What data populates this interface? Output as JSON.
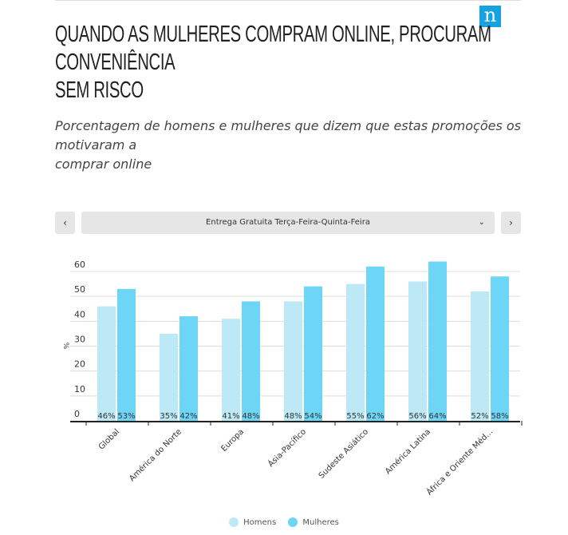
{
  "header": {
    "logo_letter": "n",
    "title_lines": [
      "QUANDO AS MULHERES COMPRAM ONLINE, PROCURAM",
      "CONVENIÊNCIA",
      "SEM RISCO"
    ],
    "subtitle_lines": [
      "Porcentagem de homens e mulheres que dizem que estas promoções os",
      "motivaram a",
      "comprar online"
    ]
  },
  "controls": {
    "prev_label": "‹",
    "next_label": "›",
    "selected_option": "Entrega Gratuita Terça-Feira-Quinta-Feira",
    "chevron": "⌄"
  },
  "colors": {
    "homens": "#bde9f7",
    "mulheres": "#6dd5f6",
    "axis": "#222222",
    "grid": "#dddddd"
  },
  "chart_data": {
    "type": "bar",
    "title": "Entrega Gratuita Terça-Feira-Quinta-Feira",
    "ylabel": "%",
    "xlabel": "",
    "ylim": [
      0,
      60
    ],
    "yticks": [
      "0",
      "10",
      "20",
      "30",
      "40",
      "50",
      "60"
    ],
    "grid": true,
    "legend_position": "bottom",
    "categories": [
      "Global",
      "América do Norte",
      "Europa",
      "Ásia-Pacífico",
      "Sudeste Asiático",
      "América Latina",
      "África e Oriente Méd..."
    ],
    "series": [
      {
        "name": "Homens",
        "values": [
          46,
          35,
          41,
          48,
          55,
          56,
          52
        ],
        "labels": [
          "46%",
          "35%",
          "41%",
          "48%",
          "55%",
          "56%",
          "52%"
        ]
      },
      {
        "name": "Mulheres",
        "values": [
          53,
          42,
          48,
          54,
          62,
          64,
          58
        ],
        "labels": [
          "53%",
          "42%",
          "48%",
          "54%",
          "62%",
          "64%",
          "58%"
        ]
      }
    ]
  }
}
